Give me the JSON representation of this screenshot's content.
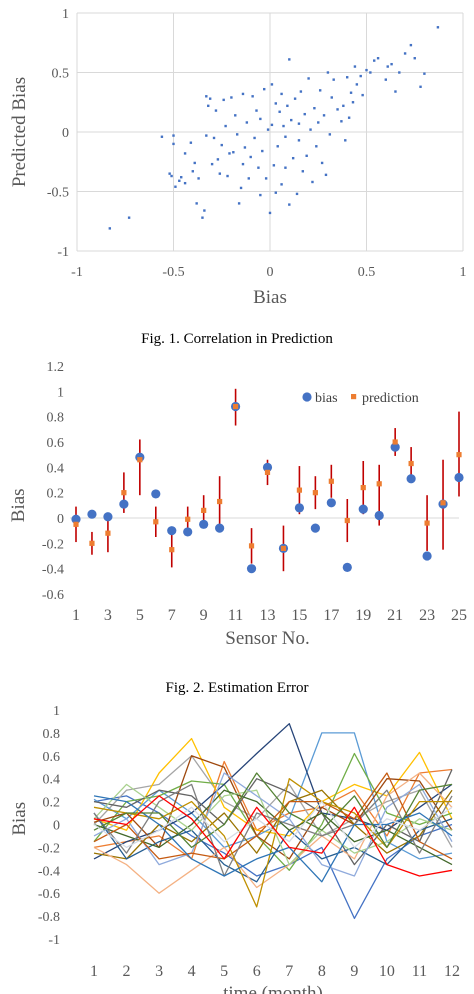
{
  "captions": {
    "fig1": "Fig. 1.  Correlation in Prediction",
    "fig2": "Fig. 2.  Estimation Error"
  },
  "chart_data": [
    {
      "type": "scatter",
      "xlabel": "Bias",
      "ylabel": "Predicted Bias",
      "xlim": [
        -1,
        1
      ],
      "ylim": [
        -1,
        1
      ],
      "xticks": [
        -1,
        -0.5,
        0,
        0.5,
        1
      ],
      "yticks": [
        -1,
        -0.5,
        0,
        0.5,
        1
      ],
      "grid": true,
      "marker_color": "#4472c4",
      "points": [
        [
          -0.83,
          -0.81
        ],
        [
          -0.73,
          -0.72
        ],
        [
          -0.56,
          -0.04
        ],
        [
          -0.52,
          -0.35
        ],
        [
          -0.51,
          -0.37
        ],
        [
          -0.5,
          -0.03
        ],
        [
          -0.5,
          -0.1
        ],
        [
          -0.49,
          -0.46
        ],
        [
          -0.47,
          -0.41
        ],
        [
          -0.46,
          -0.38
        ],
        [
          -0.44,
          -0.43
        ],
        [
          -0.44,
          -0.18
        ],
        [
          -0.41,
          -0.09
        ],
        [
          -0.4,
          -0.33
        ],
        [
          -0.39,
          -0.26
        ],
        [
          -0.38,
          -0.6
        ],
        [
          -0.37,
          -0.39
        ],
        [
          -0.35,
          -0.72
        ],
        [
          -0.34,
          -0.66
        ],
        [
          -0.33,
          0.3
        ],
        [
          -0.33,
          -0.03
        ],
        [
          -0.32,
          0.22
        ],
        [
          -0.31,
          0.28
        ],
        [
          -0.3,
          -0.27
        ],
        [
          -0.29,
          -0.05
        ],
        [
          -0.28,
          0.18
        ],
        [
          -0.27,
          -0.23
        ],
        [
          -0.26,
          -0.35
        ],
        [
          -0.25,
          -0.11
        ],
        [
          -0.24,
          0.27
        ],
        [
          -0.23,
          0.05
        ],
        [
          -0.22,
          -0.37
        ],
        [
          -0.21,
          -0.18
        ],
        [
          -0.2,
          0.29
        ],
        [
          -0.19,
          -0.17
        ],
        [
          -0.18,
          0.14
        ],
        [
          -0.17,
          -0.02
        ],
        [
          -0.16,
          -0.6
        ],
        [
          -0.15,
          -0.47
        ],
        [
          -0.14,
          0.32
        ],
        [
          -0.14,
          -0.27
        ],
        [
          -0.13,
          -0.13
        ],
        [
          -0.12,
          0.08
        ],
        [
          -0.11,
          -0.39
        ],
        [
          -0.1,
          -0.21
        ],
        [
          -0.09,
          0.3
        ],
        [
          -0.08,
          -0.05
        ],
        [
          -0.07,
          0.18
        ],
        [
          -0.06,
          -0.3
        ],
        [
          -0.05,
          0.11
        ],
        [
          -0.05,
          -0.53
        ],
        [
          -0.04,
          -0.16
        ],
        [
          -0.03,
          0.36
        ],
        [
          -0.02,
          -0.39
        ],
        [
          -0.01,
          0.02
        ],
        [
          0.0,
          -0.68
        ],
        [
          0.01,
          0.4
        ],
        [
          0.01,
          0.06
        ],
        [
          0.02,
          -0.28
        ],
        [
          0.03,
          0.24
        ],
        [
          0.03,
          -0.51
        ],
        [
          0.04,
          -0.12
        ],
        [
          0.05,
          0.17
        ],
        [
          0.06,
          -0.44
        ],
        [
          0.06,
          0.32
        ],
        [
          0.07,
          0.05
        ],
        [
          0.08,
          -0.3
        ],
        [
          0.08,
          -0.04
        ],
        [
          0.09,
          0.22
        ],
        [
          0.1,
          0.61
        ],
        [
          0.1,
          -0.61
        ],
        [
          0.11,
          0.1
        ],
        [
          0.12,
          -0.22
        ],
        [
          0.13,
          0.28
        ],
        [
          0.14,
          -0.52
        ],
        [
          0.15,
          0.07
        ],
        [
          0.15,
          -0.07
        ],
        [
          0.16,
          0.34
        ],
        [
          0.17,
          -0.33
        ],
        [
          0.18,
          0.15
        ],
        [
          0.19,
          -0.2
        ],
        [
          0.2,
          0.45
        ],
        [
          0.21,
          0.02
        ],
        [
          0.22,
          -0.42
        ],
        [
          0.23,
          0.2
        ],
        [
          0.24,
          -0.12
        ],
        [
          0.25,
          0.08
        ],
        [
          0.26,
          0.35
        ],
        [
          0.27,
          -0.26
        ],
        [
          0.28,
          0.14
        ],
        [
          0.29,
          -0.36
        ],
        [
          0.3,
          0.5
        ],
        [
          0.31,
          -0.02
        ],
        [
          0.32,
          0.29
        ],
        [
          0.33,
          0.44
        ],
        [
          0.35,
          0.19
        ],
        [
          0.37,
          0.09
        ],
        [
          0.38,
          0.22
        ],
        [
          0.39,
          -0.07
        ],
        [
          0.4,
          0.46
        ],
        [
          0.41,
          0.12
        ],
        [
          0.42,
          0.33
        ],
        [
          0.43,
          0.25
        ],
        [
          0.44,
          0.55
        ],
        [
          0.45,
          0.4
        ],
        [
          0.47,
          0.47
        ],
        [
          0.48,
          0.31
        ],
        [
          0.5,
          0.52
        ],
        [
          0.52,
          0.5
        ],
        [
          0.54,
          0.6
        ],
        [
          0.56,
          0.62
        ],
        [
          0.6,
          0.44
        ],
        [
          0.61,
          0.55
        ],
        [
          0.63,
          0.57
        ],
        [
          0.65,
          0.34
        ],
        [
          0.67,
          0.5
        ],
        [
          0.7,
          0.66
        ],
        [
          0.73,
          0.73
        ],
        [
          0.75,
          0.62
        ],
        [
          0.78,
          0.38
        ],
        [
          0.8,
          0.49
        ],
        [
          0.87,
          0.88
        ]
      ]
    },
    {
      "type": "scatter",
      "xlabel": "Sensor No.",
      "ylabel": "Bias",
      "xlim": [
        1,
        25
      ],
      "ylim": [
        -0.6,
        1.2
      ],
      "xticks": [
        1,
        3,
        5,
        7,
        9,
        11,
        13,
        15,
        17,
        19,
        21,
        23,
        25
      ],
      "yticks": [
        -0.6,
        -0.4,
        -0.2,
        0,
        0.2,
        0.4,
        0.6,
        0.8,
        1,
        1.2
      ],
      "grid": false,
      "legend_position": "top-right",
      "series": [
        {
          "name": "bias",
          "color": "#4472c4",
          "x": [
            1,
            2,
            3,
            4,
            5,
            6,
            7,
            8,
            9,
            10,
            11,
            12,
            13,
            14,
            15,
            16,
            17,
            18,
            19,
            20,
            21,
            22,
            23,
            24,
            25
          ],
          "values": [
            -0.01,
            0.03,
            0.01,
            0.11,
            0.48,
            0.19,
            -0.1,
            -0.11,
            -0.05,
            -0.08,
            0.88,
            -0.4,
            0.4,
            -0.24,
            0.08,
            -0.08,
            0.12,
            -0.39,
            0.07,
            0.02,
            0.56,
            0.31,
            -0.3,
            0.11,
            0.32
          ]
        },
        {
          "name": "prediction",
          "color": "#ed7d31",
          "x": [
            1,
            2,
            3,
            4,
            5,
            6,
            7,
            8,
            9,
            10,
            11,
            12,
            13,
            14,
            15,
            16,
            17,
            18,
            19,
            20,
            21,
            22,
            23,
            24,
            25
          ],
          "values": [
            -0.05,
            -0.2,
            -0.12,
            0.2,
            0.46,
            -0.03,
            -0.25,
            -0.01,
            0.06,
            0.13,
            0.88,
            -0.22,
            0.36,
            -0.24,
            0.22,
            0.2,
            0.29,
            -0.02,
            0.24,
            0.27,
            0.6,
            0.43,
            -0.04,
            0.12,
            0.5
          ],
          "error_low": [
            0.14,
            0.09,
            0.15,
            0.16,
            0.28,
            0.12,
            0.14,
            0.1,
            0.12,
            0.2,
            0.15,
            0.14,
            0.1,
            0.18,
            0.19,
            0.13,
            0.13,
            0.17,
            0.21,
            0.33,
            0.11,
            0.13,
            0.22,
            0.37,
            0.33
          ],
          "error_high": [
            0.14,
            0.09,
            0.15,
            0.16,
            0.16,
            0.12,
            0.14,
            0.1,
            0.12,
            0.2,
            0.14,
            0.14,
            0.1,
            0.18,
            0.19,
            0.13,
            0.13,
            0.17,
            0.21,
            0.15,
            0.11,
            0.13,
            0.22,
            0.34,
            0.34
          ],
          "error_color": "#c00000"
        }
      ]
    },
    {
      "type": "line",
      "xlabel": "time (month)",
      "ylabel": "Bias",
      "xlim": [
        1,
        12
      ],
      "ylim": [
        -1,
        1
      ],
      "xticks": [
        1,
        2,
        3,
        4,
        5,
        6,
        7,
        8,
        9,
        10,
        11,
        12
      ],
      "yticks": [
        -1,
        -0.8,
        -0.6,
        -0.4,
        -0.2,
        0,
        0.2,
        0.4,
        0.6,
        0.8,
        1
      ],
      "grid": false,
      "x": [
        1,
        2,
        3,
        4,
        5,
        6,
        7,
        8,
        9,
        10,
        11,
        12
      ],
      "series": [
        {
          "color": "#4472c4",
          "values": [
            0.2,
            0.25,
            0.1,
            -0.1,
            -0.25,
            -0.45,
            -0.35,
            -0.2,
            -0.82,
            -0.3,
            -0.1,
            0.0
          ]
        },
        {
          "color": "#ed7d31",
          "values": [
            -0.2,
            -0.15,
            -0.1,
            -0.3,
            0.55,
            -0.05,
            0.1,
            0.15,
            0.3,
            -0.1,
            0.45,
            0.48
          ]
        },
        {
          "color": "#a5a5a5",
          "values": [
            0.0,
            0.3,
            0.35,
            0.6,
            0.2,
            0.05,
            0.35,
            -0.1,
            0.05,
            0.2,
            0.3,
            -0.2
          ]
        },
        {
          "color": "#ffc000",
          "values": [
            0.05,
            -0.05,
            0.45,
            0.75,
            0.15,
            -0.05,
            -0.1,
            0.2,
            0.35,
            0.25,
            0.63,
            0.05
          ]
        },
        {
          "color": "#5b9bd5",
          "values": [
            0.22,
            0.05,
            0.3,
            0.1,
            -0.2,
            -0.1,
            0.05,
            0.8,
            0.8,
            -0.15,
            -0.3,
            -0.25
          ]
        },
        {
          "color": "#70ad47",
          "values": [
            -0.15,
            0.2,
            0.25,
            0.38,
            0.35,
            -0.1,
            -0.4,
            0.0,
            0.62,
            0.1,
            0.0,
            0.1
          ]
        },
        {
          "color": "#264478",
          "values": [
            -0.3,
            -0.15,
            -0.05,
            0.1,
            0.35,
            0.62,
            0.88,
            0.1,
            0.05,
            -0.05,
            0.15,
            0.35
          ]
        },
        {
          "color": "#9e480e",
          "values": [
            0.02,
            0.1,
            -0.2,
            0.6,
            0.5,
            -0.1,
            -0.3,
            0.15,
            0.0,
            0.4,
            0.38,
            -0.05
          ]
        },
        {
          "color": "#636363",
          "values": [
            0.2,
            0.15,
            0.3,
            0.25,
            0.0,
            0.4,
            0.28,
            0.1,
            -0.35,
            0.0,
            -0.15,
            0.48
          ]
        },
        {
          "color": "#997300",
          "values": [
            -0.25,
            -0.3,
            0.0,
            -0.15,
            0.1,
            -0.25,
            0.2,
            0.3,
            0.0,
            -0.25,
            -0.1,
            0.3
          ]
        },
        {
          "color": "#255e91",
          "values": [
            0.1,
            -0.3,
            -0.15,
            -0.05,
            -0.35,
            -0.5,
            -0.05,
            -0.3,
            -0.2,
            -0.35,
            -0.05,
            0.05
          ]
        },
        {
          "color": "#43682b",
          "values": [
            0.0,
            -0.1,
            -0.2,
            0.0,
            0.3,
            0.2,
            -0.05,
            0.1,
            -0.15,
            -0.05,
            -0.2,
            -0.35
          ]
        },
        {
          "color": "#f4b183",
          "values": [
            -0.2,
            -0.35,
            -0.6,
            -0.4,
            -0.2,
            -0.55,
            -0.35,
            -0.1,
            -0.3,
            0.25,
            0.45,
            0.15
          ]
        },
        {
          "color": "#a9d18e",
          "values": [
            0.05,
            0.35,
            0.15,
            -0.05,
            0.25,
            0.3,
            -0.35,
            -0.05,
            -0.25,
            -0.15,
            0.05,
            -0.05
          ]
        },
        {
          "color": "#8faadc",
          "values": [
            -0.1,
            0.05,
            -0.35,
            -0.25,
            0.45,
            0.25,
            0.05,
            -0.35,
            -0.45,
            0.15,
            0.35,
            -0.15
          ]
        },
        {
          "color": "#c55a11",
          "values": [
            -0.15,
            0.0,
            -0.3,
            -0.25,
            -0.3,
            -0.1,
            0.2,
            0.2,
            0.05,
            0.45,
            -0.15,
            -0.3
          ]
        },
        {
          "color": "#7f7f7f",
          "values": [
            0.1,
            -0.25,
            0.2,
            0.35,
            -0.45,
            0.1,
            0.0,
            -0.1,
            0.0,
            0.3,
            -0.25,
            0.25
          ]
        },
        {
          "color": "#bf9000",
          "values": [
            0.15,
            0.1,
            0.05,
            0.2,
            -0.1,
            -0.72,
            0.4,
            0.2,
            0.1,
            -0.2,
            0.2,
            0.2
          ]
        },
        {
          "color": "#2e75b6",
          "values": [
            0.25,
            0.2,
            0.0,
            -0.3,
            -0.45,
            -0.3,
            -0.2,
            -0.5,
            0.0,
            0.0,
            0.1,
            -0.1
          ]
        },
        {
          "color": "#548235",
          "values": [
            -0.05,
            0.1,
            0.1,
            -0.2,
            0.0,
            0.45,
            0.1,
            -0.05,
            0.25,
            -0.2,
            0.3,
            0.35
          ]
        },
        {
          "color": "#d6dce5",
          "values": [
            0.0,
            -0.2,
            -0.05,
            0.15,
            -0.15,
            0.05,
            -0.15,
            0.2,
            -0.2,
            0.05,
            -0.05,
            0.15
          ]
        },
        {
          "color": "#ff0000",
          "values": [
            0.05,
            0.0,
            0.25,
            0.05,
            -0.3,
            0.15,
            -0.2,
            -0.25,
            0.15,
            -0.35,
            -0.45,
            -0.4
          ]
        }
      ]
    }
  ]
}
